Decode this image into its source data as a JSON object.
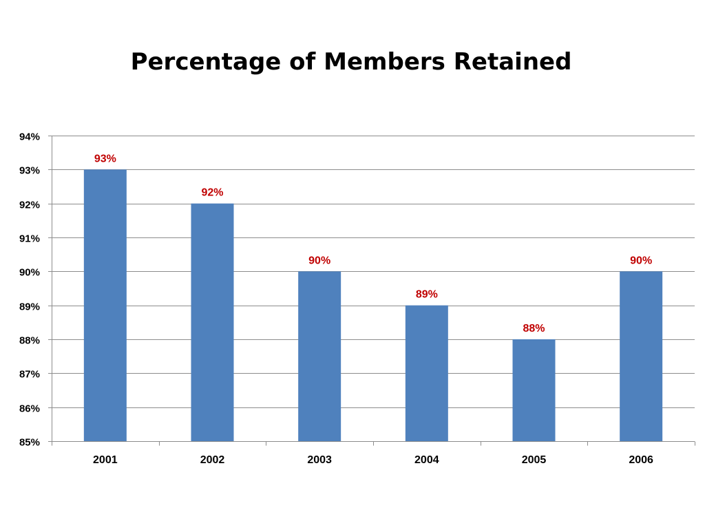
{
  "slide": {
    "title": "Percentage of Members Retained"
  },
  "colors": {
    "bar": "#4F81BD",
    "data_label": "#C00000",
    "gridline": "#8C8C8C",
    "axis": "#8C8C8C",
    "text": "#000000"
  },
  "chart_data": {
    "type": "bar",
    "title": "Percentage of Members Retained",
    "categories": [
      "2001",
      "2002",
      "2003",
      "2004",
      "2005",
      "2006"
    ],
    "values": [
      93,
      92,
      90,
      89,
      88,
      90
    ],
    "data_labels": [
      "93%",
      "92%",
      "90%",
      "89%",
      "88%",
      "90%"
    ],
    "ylim": [
      85,
      94
    ],
    "yticks": [
      85,
      86,
      87,
      88,
      89,
      90,
      91,
      92,
      93,
      94
    ],
    "ytick_labels": [
      "85%",
      "86%",
      "87%",
      "88%",
      "89%",
      "90%",
      "91%",
      "92%",
      "93%",
      "94%"
    ],
    "xlabel": "",
    "ylabel": "",
    "grid": true,
    "legend": "none"
  }
}
